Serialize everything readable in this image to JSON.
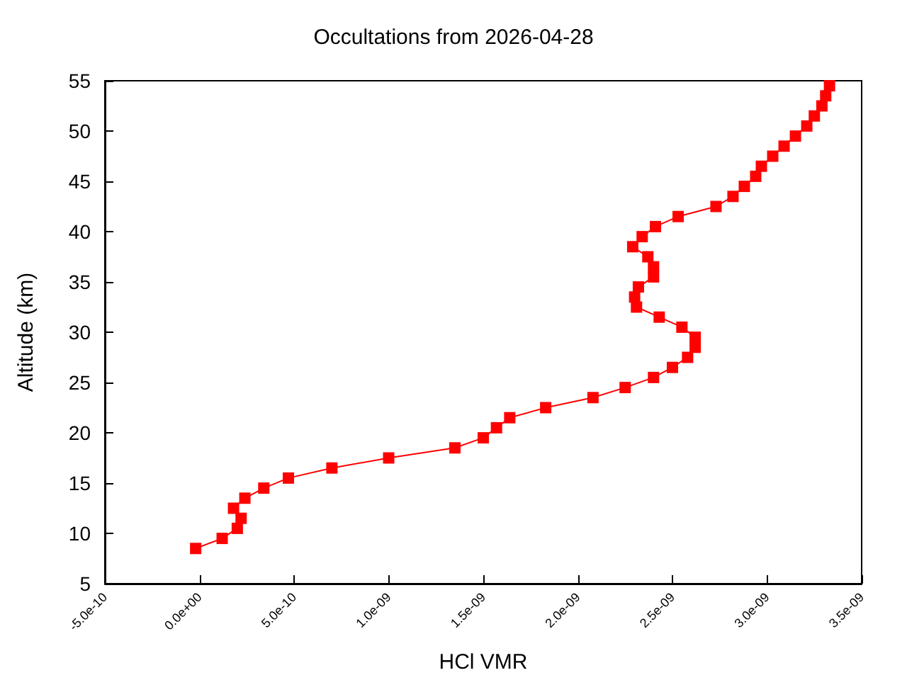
{
  "chart_data": {
    "type": "line",
    "title": "Occultations from 2026-04-28",
    "xlabel": "HCl VMR",
    "ylabel": "Altitude (km)",
    "xlim": [
      -5e-10,
      3.5e-09
    ],
    "xticks": [
      {
        "value": -5e-10,
        "label": "-5.0e-10"
      },
      {
        "value": 0,
        "label": "0.0e+00"
      },
      {
        "value": 5e-10,
        "label": "5.0e-10"
      },
      {
        "value": 1e-09,
        "label": "1.0e-09"
      },
      {
        "value": 1.5e-09,
        "label": "1.5e-09"
      },
      {
        "value": 2e-09,
        "label": "2.0e-09"
      },
      {
        "value": 2.5e-09,
        "label": "2.5e-09"
      },
      {
        "value": 3e-09,
        "label": "3.0e-09"
      },
      {
        "value": 3.5e-09,
        "label": "3.5e-09"
      }
    ],
    "ylim": [
      5,
      55
    ],
    "yticks": [
      5,
      10,
      15,
      20,
      25,
      30,
      35,
      40,
      45,
      50,
      55
    ],
    "marker": "square",
    "line_style": "solid",
    "series": [
      {
        "color": "#ff0000",
        "x": [
          -2e-11,
          1.2e-10,
          2e-10,
          2.2e-10,
          1.8e-10,
          2.4e-10,
          3.4e-10,
          4.7e-10,
          7e-10,
          1e-09,
          1.35e-09,
          1.5e-09,
          1.57e-09,
          1.64e-09,
          1.83e-09,
          2.08e-09,
          2.25e-09,
          2.4e-09,
          2.5e-09,
          2.58e-09,
          2.62e-09,
          2.62e-09,
          2.55e-09,
          2.43e-09,
          2.31e-09,
          2.3e-09,
          2.32e-09,
          2.4e-09,
          2.4e-09,
          2.37e-09,
          2.29e-09,
          2.34e-09,
          2.41e-09,
          2.53e-09,
          2.73e-09,
          2.82e-09,
          2.88e-09,
          2.94e-09,
          2.97e-09,
          3.03e-09,
          3.09e-09,
          3.15e-09,
          3.21e-09,
          3.25e-09,
          3.29e-09,
          3.31e-09,
          3.33e-09
        ],
        "values": [
          8.5,
          9.5,
          10.5,
          11.5,
          12.5,
          13.5,
          14.5,
          15.5,
          16.5,
          17.5,
          18.5,
          19.5,
          20.5,
          21.5,
          22.5,
          23.5,
          24.5,
          25.5,
          26.5,
          27.5,
          28.5,
          29.5,
          30.5,
          31.5,
          32.5,
          33.5,
          34.5,
          35.5,
          36.5,
          37.5,
          38.5,
          39.5,
          40.5,
          41.5,
          42.5,
          43.5,
          44.5,
          45.5,
          46.5,
          47.5,
          48.5,
          49.5,
          50.5,
          51.5,
          52.5,
          53.5,
          54.5
        ]
      }
    ]
  }
}
